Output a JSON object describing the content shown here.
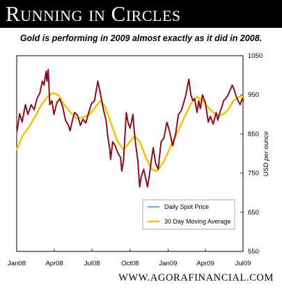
{
  "header": {
    "title": "Running in Circles"
  },
  "subtitle": "Gold is performing in 2009 almost exactly as it did in 2008.",
  "footer": {
    "url": "WWW.AGORAFINANCIAL.COM"
  },
  "colors": {
    "spot": "#8b0d1f",
    "moving_average": "#f2c40c",
    "legend_spot_swatch": "#7fa6cf",
    "banner": "#000000"
  },
  "chart_data": {
    "type": "line",
    "title": "",
    "xlabel": "",
    "ylabel": "USD per ounce",
    "ylim": [
      550,
      1050
    ],
    "yticks": [
      550,
      650,
      750,
      850,
      950,
      1050
    ],
    "xlim": [
      "2008-01-01",
      "2009-07-01"
    ],
    "x_tick_labels": [
      "Jan08",
      "Apr08",
      "Jul08",
      "Oct08",
      "Jan09",
      "Apr09",
      "Jul09"
    ],
    "x_tick_dates": [
      "2008-01-01",
      "2008-04-01",
      "2008-07-01",
      "2008-10-01",
      "2009-01-01",
      "2009-04-01",
      "2009-07-01"
    ],
    "grid": false,
    "legend": "lower-center",
    "series": [
      {
        "name": "Daily Spot Price",
        "legend_color": "#7fa6cf",
        "line_color": "#8b0d1f",
        "points": [
          [
            "2008-01-02",
            858
          ],
          [
            "2008-01-08",
            902
          ],
          [
            "2008-01-14",
            880
          ],
          [
            "2008-01-22",
            925
          ],
          [
            "2008-01-28",
            900
          ],
          [
            "2008-02-05",
            925
          ],
          [
            "2008-02-12",
            912
          ],
          [
            "2008-02-19",
            940
          ],
          [
            "2008-02-26",
            955
          ],
          [
            "2008-03-03",
            985
          ],
          [
            "2008-03-07",
            975
          ],
          [
            "2008-03-12",
            1010
          ],
          [
            "2008-03-14",
            985
          ],
          [
            "2008-03-17",
            1015
          ],
          [
            "2008-03-21",
            925
          ],
          [
            "2008-03-26",
            935
          ],
          [
            "2008-03-31",
            900
          ],
          [
            "2008-04-07",
            930
          ],
          [
            "2008-04-14",
            940
          ],
          [
            "2008-04-21",
            920
          ],
          [
            "2008-04-28",
            885
          ],
          [
            "2008-05-05",
            872
          ],
          [
            "2008-05-09",
            858
          ],
          [
            "2008-05-14",
            882
          ],
          [
            "2008-05-20",
            905
          ],
          [
            "2008-05-27",
            898
          ],
          [
            "2008-06-03",
            872
          ],
          [
            "2008-06-09",
            888
          ],
          [
            "2008-06-16",
            878
          ],
          [
            "2008-06-23",
            905
          ],
          [
            "2008-06-30",
            928
          ],
          [
            "2008-07-07",
            935
          ],
          [
            "2008-07-11",
            960
          ],
          [
            "2008-07-15",
            985
          ],
          [
            "2008-07-21",
            955
          ],
          [
            "2008-07-28",
            915
          ],
          [
            "2008-08-04",
            885
          ],
          [
            "2008-08-08",
            845
          ],
          [
            "2008-08-13",
            810
          ],
          [
            "2008-08-15",
            785
          ],
          [
            "2008-08-20",
            830
          ],
          [
            "2008-08-26",
            820
          ],
          [
            "2008-09-02",
            800
          ],
          [
            "2008-09-08",
            790
          ],
          [
            "2008-09-11",
            755
          ],
          [
            "2008-09-15",
            780
          ],
          [
            "2008-09-22",
            905
          ],
          [
            "2008-09-26",
            880
          ],
          [
            "2008-10-01",
            865
          ],
          [
            "2008-10-08",
            900
          ],
          [
            "2008-10-10",
            870
          ],
          [
            "2008-10-15",
            820
          ],
          [
            "2008-10-20",
            780
          ],
          [
            "2008-10-24",
            715
          ],
          [
            "2008-10-28",
            740
          ],
          [
            "2008-11-03",
            760
          ],
          [
            "2008-11-07",
            740
          ],
          [
            "2008-11-12",
            715
          ],
          [
            "2008-11-17",
            745
          ],
          [
            "2008-11-21",
            780
          ],
          [
            "2008-11-26",
            815
          ],
          [
            "2008-12-02",
            775
          ],
          [
            "2008-12-08",
            760
          ],
          [
            "2008-12-15",
            830
          ],
          [
            "2008-12-22",
            840
          ],
          [
            "2008-12-29",
            880
          ],
          [
            "2009-01-05",
            855
          ],
          [
            "2009-01-12",
            820
          ],
          [
            "2009-01-19",
            850
          ],
          [
            "2009-01-26",
            900
          ],
          [
            "2009-02-02",
            910
          ],
          [
            "2009-02-09",
            935
          ],
          [
            "2009-02-13",
            950
          ],
          [
            "2009-02-20",
            990
          ],
          [
            "2009-02-25",
            950
          ],
          [
            "2009-03-02",
            935
          ],
          [
            "2009-03-06",
            940
          ],
          [
            "2009-03-12",
            905
          ],
          [
            "2009-03-16",
            935
          ],
          [
            "2009-03-20",
            915
          ],
          [
            "2009-03-25",
            950
          ],
          [
            "2009-04-01",
            930
          ],
          [
            "2009-04-08",
            880
          ],
          [
            "2009-04-13",
            895
          ],
          [
            "2009-04-20",
            875
          ],
          [
            "2009-04-27",
            905
          ],
          [
            "2009-05-01",
            885
          ],
          [
            "2009-05-06",
            905
          ],
          [
            "2009-05-11",
            920
          ],
          [
            "2009-05-15",
            935
          ],
          [
            "2009-05-20",
            940
          ],
          [
            "2009-05-26",
            950
          ],
          [
            "2009-06-01",
            965
          ],
          [
            "2009-06-05",
            975
          ],
          [
            "2009-06-09",
            965
          ],
          [
            "2009-06-15",
            945
          ],
          [
            "2009-06-19",
            935
          ],
          [
            "2009-06-24",
            925
          ],
          [
            "2009-06-29",
            940
          ],
          [
            "2009-07-02",
            935
          ]
        ]
      },
      {
        "name": "30 Day Moving Average",
        "legend_color": "#f2c40c",
        "line_color": "#f2c40c",
        "points": [
          [
            "2008-01-01",
            810
          ],
          [
            "2008-01-15",
            845
          ],
          [
            "2008-02-01",
            870
          ],
          [
            "2008-02-15",
            895
          ],
          [
            "2008-03-01",
            925
          ],
          [
            "2008-03-15",
            945
          ],
          [
            "2008-03-28",
            955
          ],
          [
            "2008-04-10",
            950
          ],
          [
            "2008-04-25",
            925
          ],
          [
            "2008-05-10",
            905
          ],
          [
            "2008-05-25",
            890
          ],
          [
            "2008-06-10",
            893
          ],
          [
            "2008-06-25",
            900
          ],
          [
            "2008-07-10",
            920
          ],
          [
            "2008-07-22",
            935
          ],
          [
            "2008-08-01",
            920
          ],
          [
            "2008-08-15",
            880
          ],
          [
            "2008-09-01",
            830
          ],
          [
            "2008-09-15",
            810
          ],
          [
            "2008-10-01",
            830
          ],
          [
            "2008-10-12",
            845
          ],
          [
            "2008-10-25",
            830
          ],
          [
            "2008-11-08",
            790
          ],
          [
            "2008-11-22",
            760
          ],
          [
            "2008-12-05",
            755
          ],
          [
            "2008-12-22",
            780
          ],
          [
            "2009-01-10",
            825
          ],
          [
            "2009-01-28",
            865
          ],
          [
            "2009-02-15",
            905
          ],
          [
            "2009-03-01",
            935
          ],
          [
            "2009-03-12",
            945
          ],
          [
            "2009-03-25",
            935
          ],
          [
            "2009-04-10",
            915
          ],
          [
            "2009-04-25",
            900
          ],
          [
            "2009-05-10",
            898
          ],
          [
            "2009-05-25",
            910
          ],
          [
            "2009-06-08",
            935
          ],
          [
            "2009-06-22",
            945
          ],
          [
            "2009-07-01",
            947
          ]
        ]
      }
    ]
  }
}
